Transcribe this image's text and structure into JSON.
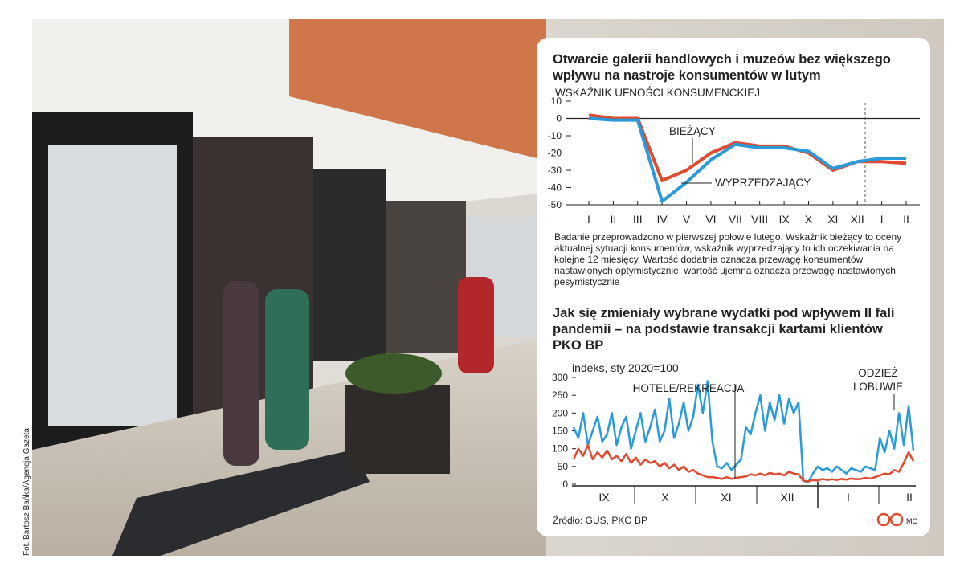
{
  "credit": "Fot. Bartosz Bańka/Agencja Gazeta",
  "source": "Źródło: GUS, PKO BP",
  "author": "MC",
  "chart_data": [
    {
      "type": "line",
      "title": "Otwarcie galerii handlowych i muzeów bez większego wpływu na nastroje konsumentów w lutym",
      "axis_label": "WSKAŹNIK UFNOŚCI KONSUMENCKIEJ",
      "categories": [
        "I",
        "II",
        "III",
        "IV",
        "V",
        "VI",
        "VII",
        "VIII",
        "IX",
        "X",
        "XI",
        "XII",
        "I",
        "II"
      ],
      "series": [
        {
          "name": "BIEŻĄCY",
          "color": "#e04a2f",
          "values": [
            2,
            0,
            0,
            -36,
            -30,
            -20,
            -14,
            -16,
            -16,
            -20,
            -30,
            -25,
            -25,
            -26
          ]
        },
        {
          "name": "WYPRZEDZAJĄCY",
          "color": "#2a9ad8",
          "values": [
            0,
            -1,
            -1,
            -48,
            -37,
            -24,
            -15,
            -17,
            -17,
            -19,
            -29,
            -25,
            -23,
            -23
          ]
        }
      ],
      "ylim": [
        -50,
        10
      ],
      "yticks": [
        10,
        0,
        -10,
        -20,
        -30,
        -40,
        -50
      ],
      "note": "Badanie przeprowadzono w pierwszej połowie lutego. Wskaźnik bieżący to oceny aktualnej sytuacji konsumentów, wskaźnik wyprzedzający to ich oczekiwania na kolejne 12 miesięcy. Wartość dodatnia oznacza przewagę konsumentów nastawionych optymistycznie, wartość ujemna oznacza przewagę nastawionych pesymistycznie"
    },
    {
      "type": "line",
      "title": "Jak się zmieniały wybrane wydatki pod wpływem II fali pandemii – na podstawie transakcji kartami klientów PKO BP",
      "y_label": "indeks, sty 2020=100",
      "month_labels": [
        "IX",
        "X",
        "XI",
        "XII",
        "I",
        "II"
      ],
      "annotations": [
        [
          "HOTELE/REKREACJA"
        ],
        [
          "ODZIEŻ",
          "I OBUWIE"
        ]
      ],
      "series": [
        {
          "color": "#2a9ad8",
          "values": [
            160,
            130,
            200,
            110,
            150,
            190,
            120,
            140,
            200,
            110,
            160,
            190,
            100,
            150,
            200,
            120,
            160,
            210,
            120,
            150,
            240,
            130,
            170,
            230,
            150,
            190,
            280,
            200,
            290,
            120,
            50,
            45,
            60,
            40,
            55,
            70,
            160,
            140,
            200,
            250,
            150,
            230,
            180,
            250,
            170,
            240,
            200,
            230,
            10,
            5,
            30,
            50,
            40,
            45,
            35,
            50,
            40,
            30,
            45,
            40,
            35,
            50,
            45,
            40,
            130,
            90,
            150,
            100,
            200,
            110,
            220,
            95
          ]
        },
        {
          "color": "#e04a2f",
          "values": [
            70,
            100,
            80,
            110,
            70,
            90,
            75,
            95,
            70,
            80,
            65,
            85,
            60,
            75,
            55,
            70,
            60,
            65,
            50,
            60,
            45,
            55,
            40,
            50,
            35,
            40,
            30,
            25,
            20,
            20,
            18,
            15,
            20,
            15,
            18,
            20,
            22,
            28,
            25,
            30,
            25,
            32,
            28,
            30,
            25,
            35,
            30,
            28,
            10,
            8,
            12,
            10,
            15,
            12,
            14,
            12,
            15,
            13,
            16,
            14,
            15,
            18,
            16,
            20,
            25,
            30,
            28,
            40,
            35,
            60,
            90,
            65
          ]
        }
      ],
      "ylim": [
        0,
        300
      ],
      "yticks": [
        0,
        50,
        100,
        150,
        200,
        250,
        300
      ]
    }
  ]
}
